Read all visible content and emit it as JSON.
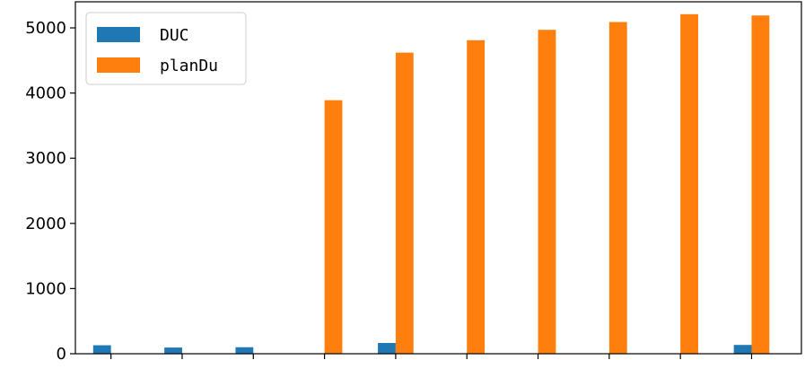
{
  "chart_data": {
    "type": "bar",
    "title": "",
    "xlabel": "",
    "ylabel": "",
    "categories": [
      "",
      "",
      "",
      "",
      "",
      "",
      "",
      "",
      "",
      ""
    ],
    "ylim": [
      0,
      5400
    ],
    "yticks": [
      0,
      1000,
      2000,
      3000,
      4000,
      5000
    ],
    "ytick_labels": [
      "0",
      "1000",
      "2000",
      "3000",
      "4000",
      "5000"
    ],
    "grid": false,
    "legend": "top-left",
    "series": [
      {
        "name": "DUC",
        "color": "#1f77b4",
        "values": [
          130,
          95,
          100,
          0,
          165,
          0,
          0,
          0,
          0,
          135
        ]
      },
      {
        "name": "planDu",
        "color": "#ff7f0e",
        "values": [
          0,
          0,
          0,
          3890,
          4620,
          4810,
          4970,
          5090,
          5210,
          5190
        ]
      }
    ]
  }
}
